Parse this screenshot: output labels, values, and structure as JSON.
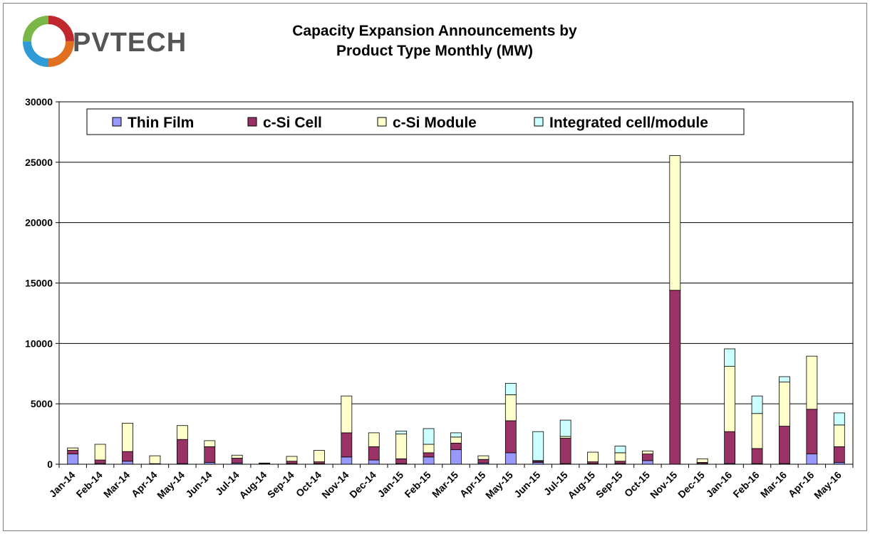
{
  "logo": {
    "text": "PVTECH"
  },
  "title": {
    "line1": "Capacity Expansion Announcements by",
    "line2": "Product Type Monthly (MW)"
  },
  "chart_data": {
    "type": "bar",
    "stacked": true,
    "title": "Capacity Expansion Announcements by Product Type Monthly (MW)",
    "xlabel": "",
    "ylabel": "",
    "ylim": [
      0,
      30000
    ],
    "yticks": [
      0,
      5000,
      10000,
      15000,
      20000,
      25000,
      30000
    ],
    "grid": true,
    "legend_position": "top",
    "categories": [
      "Jan-14",
      "Feb-14",
      "Mar-14",
      "Apr-14",
      "May-14",
      "Jun-14",
      "Jul-14",
      "Aug-14",
      "Sep-14",
      "Oct-14",
      "Nov-14",
      "Dec-14",
      "Jan-15",
      "Feb-15",
      "Mar-15",
      "Apr-15",
      "May-15",
      "Jun-15",
      "Jul-15",
      "Aug-15",
      "Sep-15",
      "Oct-15",
      "Nov-15",
      "Dec-15",
      "Jan-16",
      "Feb-16",
      "Mar-16",
      "Apr-16",
      "May-16"
    ],
    "series": [
      {
        "name": "Thin Film",
        "color": "#9999ff",
        "values": [
          850,
          50,
          250,
          0,
          50,
          150,
          100,
          0,
          50,
          50,
          600,
          350,
          50,
          600,
          1200,
          100,
          950,
          150,
          50,
          50,
          50,
          300,
          0,
          50,
          50,
          50,
          50,
          850,
          150
        ]
      },
      {
        "name": "c-Si Cell",
        "color": "#993366",
        "values": [
          300,
          300,
          800,
          50,
          2000,
          1300,
          400,
          50,
          200,
          150,
          2000,
          1100,
          400,
          350,
          550,
          300,
          2650,
          100,
          2100,
          150,
          200,
          550,
          14400,
          100,
          2650,
          1250,
          3100,
          3700,
          1300
        ]
      },
      {
        "name": "c-Si Module",
        "color": "#ffffcc",
        "values": [
          200,
          1300,
          2350,
          650,
          1150,
          500,
          250,
          50,
          400,
          950,
          3050,
          1150,
          2050,
          700,
          500,
          300,
          2150,
          50,
          150,
          800,
          700,
          250,
          11150,
          300,
          5400,
          2900,
          3650,
          4400,
          1800
        ]
      },
      {
        "name": "Integrated cell/module",
        "color": "#ccffff",
        "values": [
          0,
          0,
          0,
          0,
          0,
          0,
          0,
          0,
          0,
          0,
          0,
          0,
          250,
          1300,
          350,
          0,
          950,
          2400,
          1350,
          0,
          550,
          0,
          0,
          0,
          1450,
          1450,
          450,
          0,
          1000
        ]
      }
    ]
  }
}
